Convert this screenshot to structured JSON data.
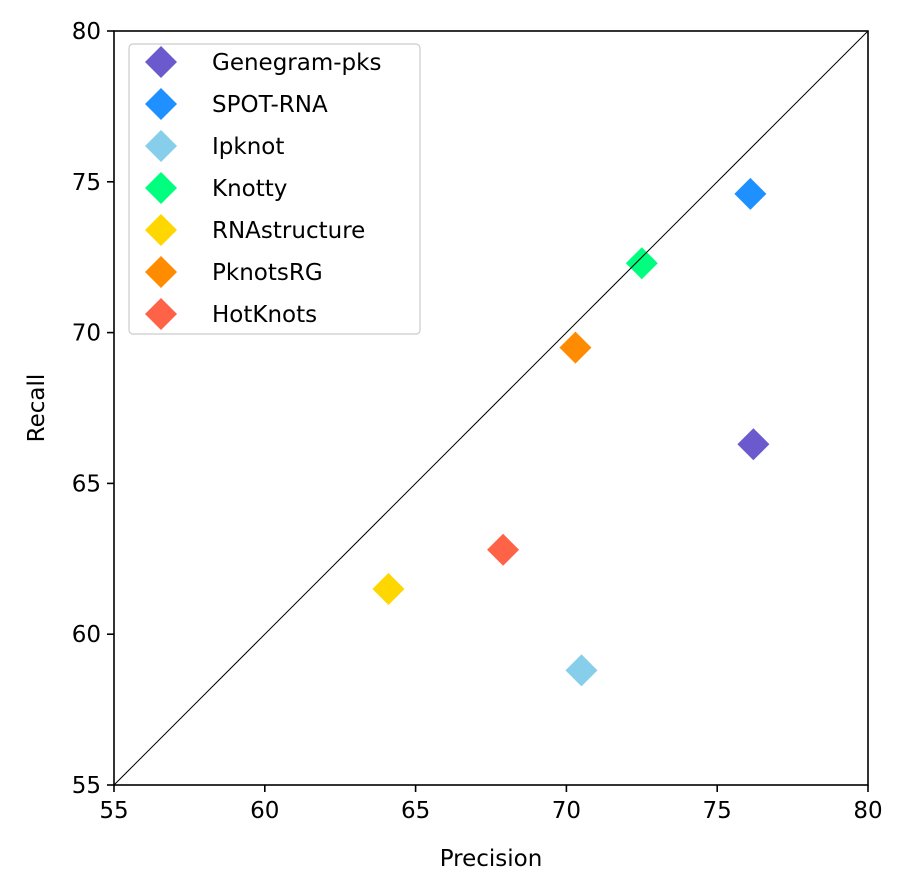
{
  "chart_data": {
    "type": "scatter",
    "title": "",
    "xlabel": "Precision",
    "ylabel": "Recall",
    "xlim": [
      55,
      80
    ],
    "ylim": [
      55,
      80
    ],
    "xticks": [
      55,
      60,
      65,
      70,
      75,
      80
    ],
    "yticks": [
      55,
      60,
      65,
      70,
      75,
      80
    ],
    "grid": false,
    "legend_position": "top-left",
    "reference_line": "y = x diagonal",
    "marker": "diamond",
    "series": [
      {
        "name": "Genegram-pks",
        "color": "#6A5ACD",
        "x": 76.2,
        "y": 66.3
      },
      {
        "name": "SPOT-RNA",
        "color": "#1E90FF",
        "x": 76.1,
        "y": 74.6
      },
      {
        "name": "Ipknot",
        "color": "#87CEEB",
        "x": 70.5,
        "y": 58.8
      },
      {
        "name": "Knotty",
        "color": "#00FF7F",
        "x": 72.5,
        "y": 72.3
      },
      {
        "name": "RNAstructure",
        "color": "#FFD700",
        "x": 64.1,
        "y": 61.5
      },
      {
        "name": "PknotsRG",
        "color": "#FF8C00",
        "x": 70.3,
        "y": 69.5
      },
      {
        "name": "HotKnots",
        "color": "#FF6347",
        "x": 67.9,
        "y": 62.8
      }
    ]
  }
}
